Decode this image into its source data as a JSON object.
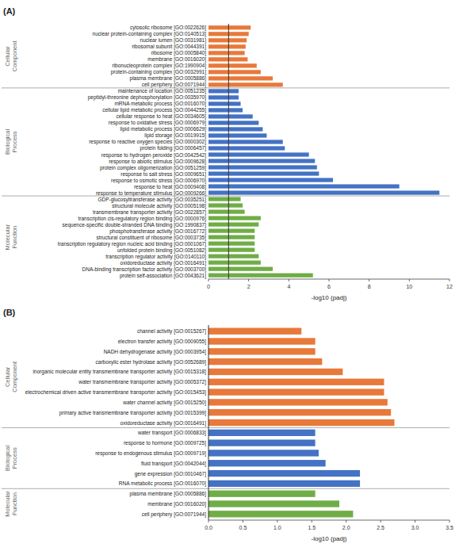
{
  "chart_data": [
    {
      "type": "bar",
      "orientation": "horizontal",
      "title": "(A)",
      "sections": [
        {
          "name": "Cellular\nComponent",
          "color": "#E8793A",
          "categories": [
            "cytosolic ribosome [GO:0022626]",
            "nuclear protein-containing complex [GO:0140513]",
            "nuclear lumen [GO:0031981]",
            "ribosomal subunit [GO:0044391]",
            "ribosome [GO:0005840]",
            "membrane [GO:0016020]",
            "ribonucleoprotein complex [GO:1990904]",
            "protein-containing complex [GO:0032991]",
            "plasma membrane [GO:0005886]",
            "cell periphery [GO:0071944]"
          ],
          "values": [
            2.1,
            2.0,
            1.9,
            1.85,
            1.8,
            1.95,
            2.4,
            2.6,
            3.2,
            3.7
          ]
        },
        {
          "name": "Biological\nProcess",
          "color": "#4472C4",
          "categories": [
            "maintenance of location [GO:0051235]",
            "peptidyl-threonine dephosphorylation [GO:0035970]",
            "mRNA metabolic process [GO:0016070]",
            "cellular lipid metabolic process [GO:0044255]",
            "cellular response to heat [GO:0034605]",
            "response to oxidative stress [GO:0006979]",
            "lipid metabolic process [GO:0006629]",
            "lipid storage [GO:0019915]",
            "response to reactive oxygen species [GO:0000302]",
            "protein folding [GO:0006457]",
            "response to hydrogen peroxide [GO:0042542]",
            "response to abiotic stimulus [GO:0009628]",
            "protein complex oligomerization [GO:0051259]",
            "response to salt stress [GO:0009651]",
            "response to osmotic stress [GO:0006970]",
            "response to heat [GO:0009408]",
            "response to temperature stimulus [GO:0009266]"
          ],
          "values": [
            1.5,
            1.5,
            1.6,
            1.7,
            2.2,
            2.5,
            2.7,
            2.9,
            3.7,
            3.8,
            5.0,
            5.3,
            5.4,
            5.5,
            6.2,
            9.5,
            11.5
          ]
        },
        {
          "name": "Molecular\nFunction",
          "color": "#70AD47",
          "categories": [
            "GDP-glucosyltransferase activity [GO:0035251]",
            "structural molecule activity [GO:0005198]",
            "transmembrane transporter activity [GO:0022857]",
            "transcription cis-regulatory region binding [GO:0000976]",
            "sequence-specific double-stranded DNA binding [GO:1990837]",
            "phosphotransferase activity [GO:0016772]",
            "structural constituent of ribosome [GO:0003735]",
            "transcription regulatory region nucleic acid binding [GO:0001067]",
            "unfolded protein binding [GO:0051082]",
            "transcription regulator activity [GO:0140110]",
            "oxidoreductase activity [GO:0016491]",
            "DNA-binding transcription factor activity [GO:0003700]",
            "protein self-association [GO:0043621]"
          ],
          "values": [
            1.6,
            1.7,
            1.8,
            2.6,
            2.5,
            2.3,
            2.3,
            2.3,
            2.3,
            2.5,
            2.6,
            3.2,
            5.2
          ]
        }
      ],
      "xlim": [
        0,
        12.0
      ],
      "xticks": [
        0,
        2,
        4,
        6,
        8,
        10,
        12
      ],
      "x_label": "-log10 (padj)",
      "reference_line": 1.0
    },
    {
      "type": "bar",
      "orientation": "horizontal",
      "title": "(B)",
      "sections": [
        {
          "name": "Cellular\nComponent",
          "color": "#E8793A",
          "categories": [
            "channel activity [GO:0015267]",
            "electron transfer activity [GO:0009055]",
            "NADH dehydrogenase activity [GO:0003954]",
            "carboxylic ester hydrolase activity [GO:0052689]",
            "inorganic molecular entity transmembrane transporter activity [GO:0015318]",
            "water transmembrane transporter activity [GO:0005372]",
            "electrochemical driven active transmembrane transporter activity [GO:0015453]",
            "water channel activity [GO:0015250]",
            "primary active transmembrane transporter activity [GO:0015399]",
            "oxidoreductase activity [GO:0016491]"
          ],
          "values": [
            1.35,
            1.55,
            1.55,
            1.65,
            1.95,
            2.55,
            2.55,
            2.6,
            2.65,
            2.7
          ]
        },
        {
          "name": "Biological\nProcess",
          "color": "#4472C4",
          "categories": [
            "water transport [GO:0006833]",
            "response to hormone [GO:0009725]",
            "response to endogenous stimulus [GO:0009719]",
            "fluid transport [GO:0042044]",
            "gene expression [GO:0010467]",
            "RNA metabolic process [GO:0016070]"
          ],
          "values": [
            1.55,
            1.55,
            1.6,
            1.7,
            2.2,
            2.2
          ]
        },
        {
          "name": "Molecular\nFunction",
          "color": "#70AD47",
          "categories": [
            "plasma membrane [GO:0005886]",
            "membrane [GO:0016020]",
            "cell periphery [GO:0071944]"
          ],
          "values": [
            1.55,
            1.9,
            2.1
          ]
        }
      ],
      "xlim": [
        0,
        3.5
      ],
      "xticks": [
        {
          "value": 0.0,
          "label": "0.0"
        },
        0.5,
        {
          "value": 1.0,
          "label": "1.0"
        },
        1.5,
        {
          "value": 2.0,
          "label": "2.0"
        },
        2.5,
        {
          "value": 3.0,
          "label": "3.0"
        },
        3.5
      ],
      "x_label": "-log10 (padj)",
      "reference_line": 0.0
    }
  ]
}
